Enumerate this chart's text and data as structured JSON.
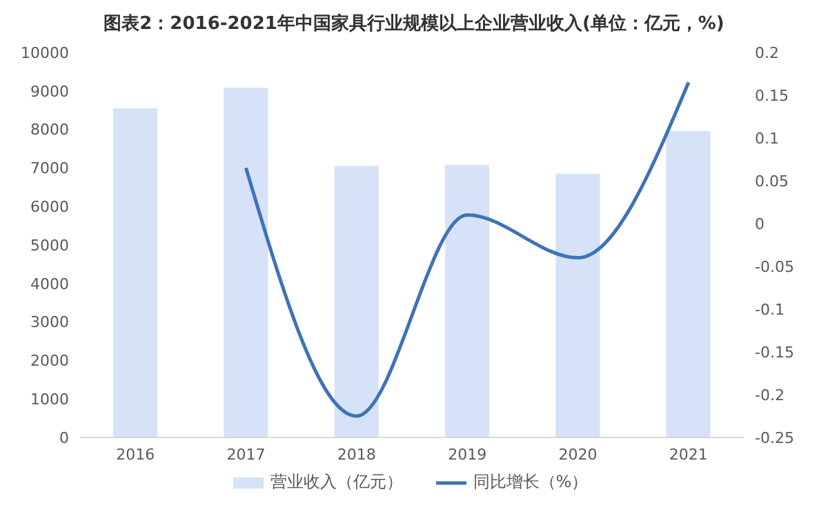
{
  "chart_data": {
    "type": "bar",
    "title": "图表2：2016-2021年中国家具行业规模以上企业营业收入(单位：亿元，%)",
    "categories": [
      "2016",
      "2017",
      "2018",
      "2019",
      "2020",
      "2021"
    ],
    "series": [
      {
        "name": "营业收入（亿元）",
        "color": "#d5e2f7",
        "values": [
          8550,
          9080,
          7050,
          7080,
          6850,
          7960
        ]
      },
      {
        "name": "同比增长（%）",
        "type": "line",
        "axis": "y2",
        "color": "#3f72b8",
        "values": [
          null,
          0.065,
          -0.225,
          0.01,
          -0.04,
          0.165
        ]
      }
    ],
    "ylim": [
      0,
      10000
    ],
    "yticks": [
      0,
      1000,
      2000,
      3000,
      4000,
      5000,
      6000,
      7000,
      8000,
      9000,
      10000
    ],
    "y2lim": [
      -0.25,
      0.2
    ],
    "y2ticks": [
      -0.25,
      -0.2,
      -0.15,
      -0.1,
      -0.05,
      0,
      0.05,
      0.1,
      0.15,
      0.2
    ],
    "grid": false,
    "legend": "bottom",
    "marker": "none",
    "line_style": "solid"
  }
}
